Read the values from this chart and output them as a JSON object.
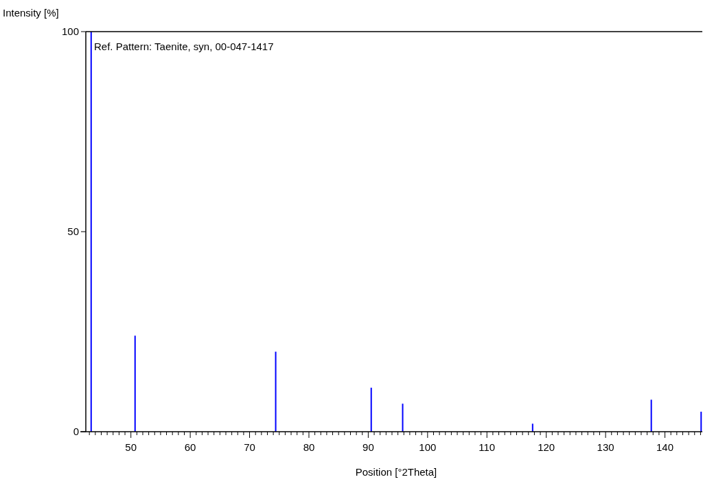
{
  "chart_data": {
    "type": "bar",
    "xlabel": "Position [°2Theta]",
    "ylabel": "Intensity [%]",
    "annotations": [
      "Ref. Pattern: Taenite, syn, 00-047-1417"
    ],
    "x": [
      43.3,
      50.7,
      74.4,
      90.5,
      95.8,
      117.7,
      137.7,
      146.1
    ],
    "values": [
      100,
      24,
      20,
      11,
      7,
      2,
      8,
      5
    ],
    "color": "#0000ff",
    "xlim": [
      42.4,
      146.3
    ],
    "xticks": [
      {
        "value": 43,
        "label": null
      },
      {
        "value": 44,
        "label": null
      },
      {
        "value": 45,
        "label": null
      },
      {
        "value": 46,
        "label": null
      },
      {
        "value": 47,
        "label": null
      },
      {
        "value": 48,
        "label": null
      },
      {
        "value": 49,
        "label": null
      },
      50,
      {
        "value": 51,
        "label": null
      },
      {
        "value": 52,
        "label": null
      },
      {
        "value": 53,
        "label": null
      },
      {
        "value": 54,
        "label": null
      },
      {
        "value": 55,
        "label": null
      },
      {
        "value": 56,
        "label": null
      },
      {
        "value": 57,
        "label": null
      },
      {
        "value": 58,
        "label": null
      },
      {
        "value": 59,
        "label": null
      },
      60,
      {
        "value": 61,
        "label": null
      },
      {
        "value": 62,
        "label": null
      },
      {
        "value": 63,
        "label": null
      },
      {
        "value": 64,
        "label": null
      },
      {
        "value": 65,
        "label": null
      },
      {
        "value": 66,
        "label": null
      },
      {
        "value": 67,
        "label": null
      },
      {
        "value": 68,
        "label": null
      },
      {
        "value": 69,
        "label": null
      },
      70,
      {
        "value": 71,
        "label": null
      },
      {
        "value": 72,
        "label": null
      },
      {
        "value": 73,
        "label": null
      },
      {
        "value": 74,
        "label": null
      },
      {
        "value": 75,
        "label": null
      },
      {
        "value": 76,
        "label": null
      },
      {
        "value": 77,
        "label": null
      },
      {
        "value": 78,
        "label": null
      },
      {
        "value": 79,
        "label": null
      },
      80,
      {
        "value": 81,
        "label": null
      },
      {
        "value": 82,
        "label": null
      },
      {
        "value": 83,
        "label": null
      },
      {
        "value": 84,
        "label": null
      },
      {
        "value": 85,
        "label": null
      },
      {
        "value": 86,
        "label": null
      },
      {
        "value": 87,
        "label": null
      },
      {
        "value": 88,
        "label": null
      },
      {
        "value": 89,
        "label": null
      },
      90,
      {
        "value": 91,
        "label": null
      },
      {
        "value": 92,
        "label": null
      },
      {
        "value": 93,
        "label": null
      },
      {
        "value": 94,
        "label": null
      },
      {
        "value": 95,
        "label": null
      },
      {
        "value": 96,
        "label": null
      },
      {
        "value": 97,
        "label": null
      },
      {
        "value": 98,
        "label": null
      },
      {
        "value": 99,
        "label": null
      },
      100,
      {
        "value": 101,
        "label": null
      },
      {
        "value": 102,
        "label": null
      },
      {
        "value": 103,
        "label": null
      },
      {
        "value": 104,
        "label": null
      },
      {
        "value": 105,
        "label": null
      },
      {
        "value": 106,
        "label": null
      },
      {
        "value": 107,
        "label": null
      },
      {
        "value": 108,
        "label": null
      },
      {
        "value": 109,
        "label": null
      },
      110,
      {
        "value": 111,
        "label": null
      },
      {
        "value": 112,
        "label": null
      },
      {
        "value": 113,
        "label": null
      },
      {
        "value": 114,
        "label": null
      },
      {
        "value": 115,
        "label": null
      },
      {
        "value": 116,
        "label": null
      },
      {
        "value": 117,
        "label": null
      },
      {
        "value": 118,
        "label": null
      },
      {
        "value": 119,
        "label": null
      },
      120,
      {
        "value": 121,
        "label": null
      },
      {
        "value": 122,
        "label": null
      },
      {
        "value": 123,
        "label": null
      },
      {
        "value": 124,
        "label": null
      },
      {
        "value": 125,
        "label": null
      },
      {
        "value": 126,
        "label": null
      },
      {
        "value": 127,
        "label": null
      },
      {
        "value": 128,
        "label": null
      },
      {
        "value": 129,
        "label": null
      },
      130,
      {
        "value": 131,
        "label": null
      },
      {
        "value": 132,
        "label": null
      },
      {
        "value": 133,
        "label": null
      },
      {
        "value": 134,
        "label": null
      },
      {
        "value": 135,
        "label": null
      },
      {
        "value": 136,
        "label": null
      },
      {
        "value": 137,
        "label": null
      },
      {
        "value": 138,
        "label": null
      },
      {
        "value": 139,
        "label": null
      },
      140,
      {
        "value": 141,
        "label": null
      },
      {
        "value": 142,
        "label": null
      },
      {
        "value": 143,
        "label": null
      },
      {
        "value": 144,
        "label": null
      },
      {
        "value": 145,
        "label": null
      },
      {
        "value": 146,
        "label": null
      }
    ],
    "ylim": [
      0,
      100
    ],
    "yticks": [
      0,
      50,
      100
    ]
  }
}
